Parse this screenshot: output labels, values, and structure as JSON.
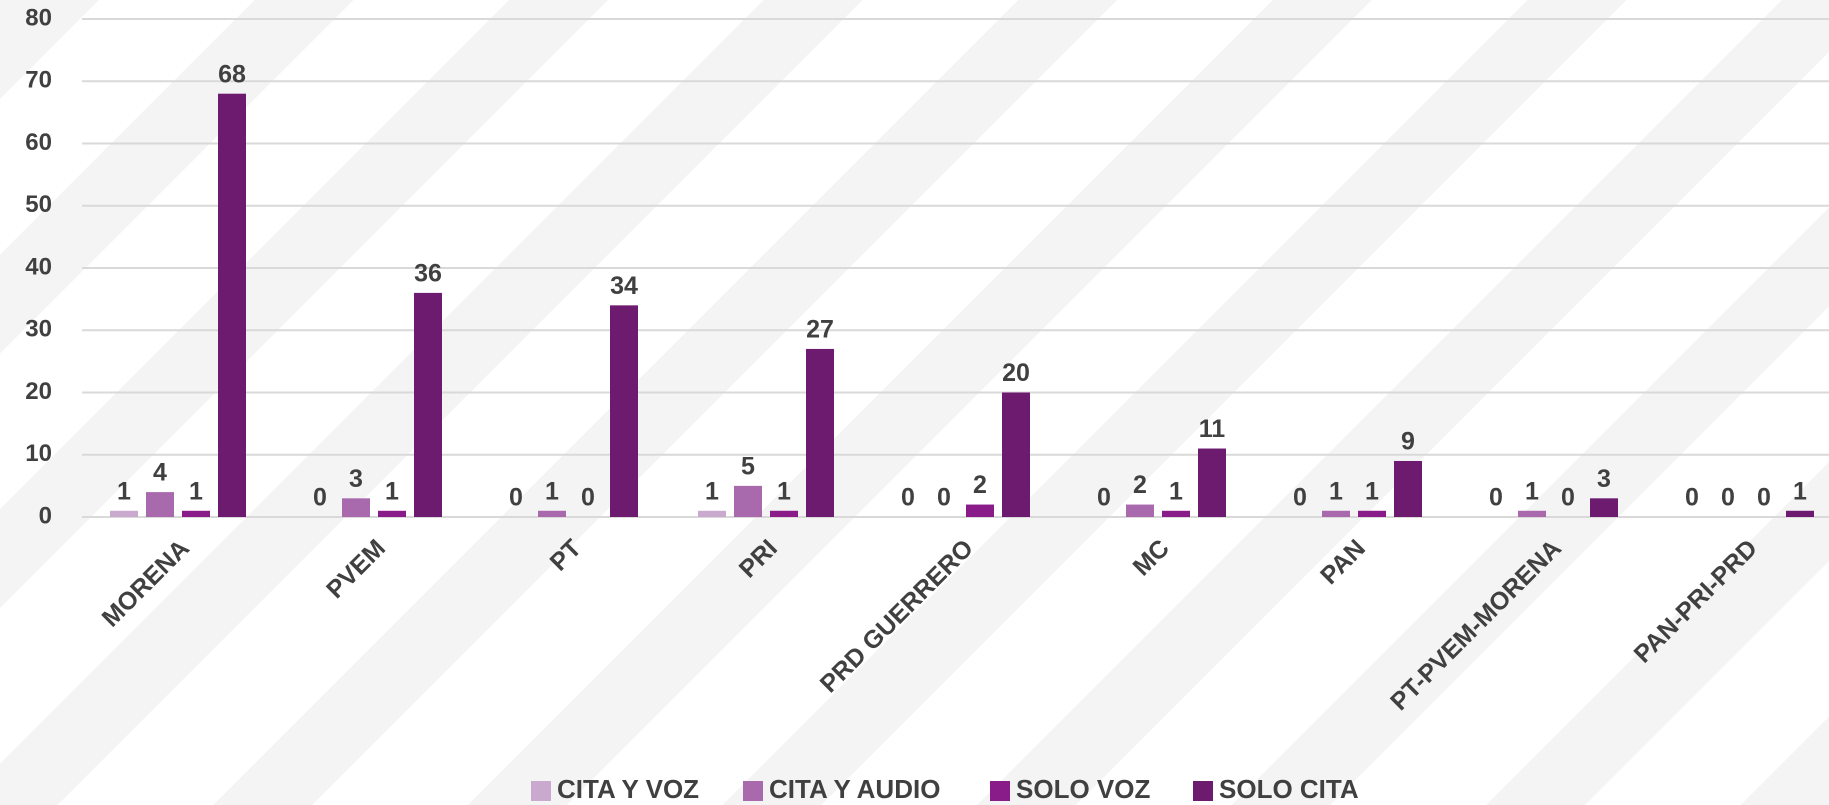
{
  "chart_data": {
    "type": "bar",
    "categories": [
      "MORENA",
      "PVEM",
      "PT",
      "PRI",
      "PRD GUERRERO",
      "MC",
      "PAN",
      "PT-PVEM-MORENA",
      "PAN-PRI-PRD"
    ],
    "series": [
      {
        "name": "CITA Y VOZ",
        "color": "#c9a9cd",
        "values": [
          1,
          0,
          0,
          1,
          0,
          0,
          0,
          0,
          0
        ]
      },
      {
        "name": "CITA Y AUDIO",
        "color": "#a86aad",
        "values": [
          4,
          3,
          1,
          5,
          0,
          2,
          1,
          1,
          0
        ]
      },
      {
        "name": "SOLO VOZ",
        "color": "#8a1c8a",
        "values": [
          1,
          1,
          0,
          1,
          2,
          1,
          1,
          0,
          0
        ]
      },
      {
        "name": "SOLO CITA",
        "color": "#6d1b6e",
        "values": [
          68,
          36,
          34,
          27,
          20,
          11,
          9,
          3,
          1
        ]
      }
    ],
    "ylim": [
      0,
      80
    ],
    "yticks": [
      0,
      10,
      20,
      30,
      40,
      50,
      60,
      70,
      80
    ],
    "grid": true,
    "legend": "bottom"
  }
}
